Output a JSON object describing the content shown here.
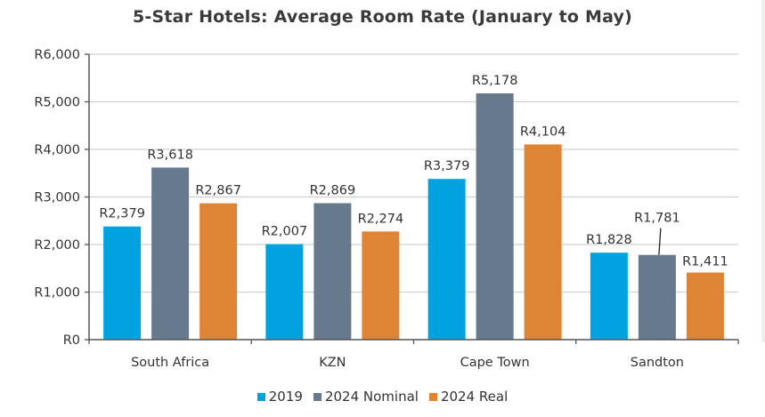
{
  "chart_data": {
    "type": "bar",
    "title": "5-Star Hotels: Average Room Rate (January to May)",
    "xlabel": "",
    "ylabel": "",
    "categories": [
      "South Africa",
      "KZN",
      "Cape Town",
      "Sandton"
    ],
    "series": [
      {
        "name": "2019",
        "color": "#00a3e0",
        "values": [
          2379,
          2007,
          3379,
          1828
        ],
        "labels": [
          "R2,379",
          "R2,007",
          "R3,379",
          "R1,828"
        ]
      },
      {
        "name": "2024 Nominal",
        "color": "#67798c",
        "values": [
          3618,
          2869,
          5178,
          1781
        ],
        "labels": [
          "R3,618",
          "R2,869",
          "R5,178",
          "R1,781"
        ]
      },
      {
        "name": "2024 Real",
        "color": "#de8535",
        "values": [
          2867,
          2274,
          4104,
          1411
        ],
        "labels": [
          "R2,867",
          "R2,274",
          "R4,104",
          "R1,411"
        ]
      }
    ],
    "ylim": [
      0,
      6000
    ],
    "yticks": [
      0,
      1000,
      2000,
      3000,
      4000,
      5000,
      6000
    ],
    "ytick_labels": [
      "R0",
      "R1,000",
      "R2,000",
      "R3,000",
      "R4,000",
      "R5,000",
      "R6,000"
    ],
    "grid": true,
    "legend_position": "bottom"
  }
}
